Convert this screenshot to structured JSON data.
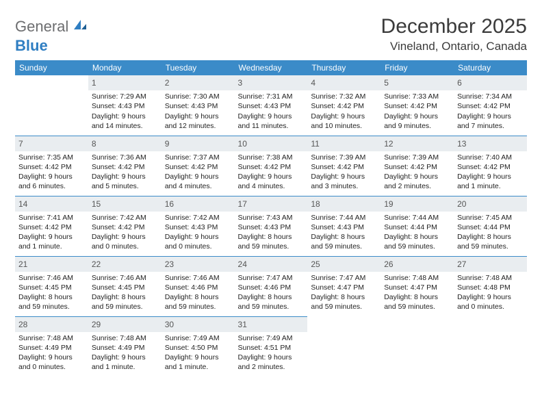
{
  "brand": {
    "word1": "General",
    "word2": "Blue",
    "color_gray": "#6c6d6f",
    "color_blue": "#2f7ec2"
  },
  "title": "December 2025",
  "subtitle": "Vineland, Ontario, Canada",
  "colors": {
    "header_bg": "#3b8bc8",
    "header_fg": "#ffffff",
    "daynum_bg": "#e9edf0",
    "daynum_fg": "#555555",
    "rule": "#3b8bc8",
    "text": "#222222",
    "background": "#ffffff"
  },
  "day_headers": [
    "Sunday",
    "Monday",
    "Tuesday",
    "Wednesday",
    "Thursday",
    "Friday",
    "Saturday"
  ],
  "weeks": [
    [
      null,
      {
        "n": "1",
        "sunrise": "Sunrise: 7:29 AM",
        "sunset": "Sunset: 4:43 PM",
        "daylight": "Daylight: 9 hours and 14 minutes."
      },
      {
        "n": "2",
        "sunrise": "Sunrise: 7:30 AM",
        "sunset": "Sunset: 4:43 PM",
        "daylight": "Daylight: 9 hours and 12 minutes."
      },
      {
        "n": "3",
        "sunrise": "Sunrise: 7:31 AM",
        "sunset": "Sunset: 4:43 PM",
        "daylight": "Daylight: 9 hours and 11 minutes."
      },
      {
        "n": "4",
        "sunrise": "Sunrise: 7:32 AM",
        "sunset": "Sunset: 4:42 PM",
        "daylight": "Daylight: 9 hours and 10 minutes."
      },
      {
        "n": "5",
        "sunrise": "Sunrise: 7:33 AM",
        "sunset": "Sunset: 4:42 PM",
        "daylight": "Daylight: 9 hours and 9 minutes."
      },
      {
        "n": "6",
        "sunrise": "Sunrise: 7:34 AM",
        "sunset": "Sunset: 4:42 PM",
        "daylight": "Daylight: 9 hours and 7 minutes."
      }
    ],
    [
      {
        "n": "7",
        "sunrise": "Sunrise: 7:35 AM",
        "sunset": "Sunset: 4:42 PM",
        "daylight": "Daylight: 9 hours and 6 minutes."
      },
      {
        "n": "8",
        "sunrise": "Sunrise: 7:36 AM",
        "sunset": "Sunset: 4:42 PM",
        "daylight": "Daylight: 9 hours and 5 minutes."
      },
      {
        "n": "9",
        "sunrise": "Sunrise: 7:37 AM",
        "sunset": "Sunset: 4:42 PM",
        "daylight": "Daylight: 9 hours and 4 minutes."
      },
      {
        "n": "10",
        "sunrise": "Sunrise: 7:38 AM",
        "sunset": "Sunset: 4:42 PM",
        "daylight": "Daylight: 9 hours and 4 minutes."
      },
      {
        "n": "11",
        "sunrise": "Sunrise: 7:39 AM",
        "sunset": "Sunset: 4:42 PM",
        "daylight": "Daylight: 9 hours and 3 minutes."
      },
      {
        "n": "12",
        "sunrise": "Sunrise: 7:39 AM",
        "sunset": "Sunset: 4:42 PM",
        "daylight": "Daylight: 9 hours and 2 minutes."
      },
      {
        "n": "13",
        "sunrise": "Sunrise: 7:40 AM",
        "sunset": "Sunset: 4:42 PM",
        "daylight": "Daylight: 9 hours and 1 minute."
      }
    ],
    [
      {
        "n": "14",
        "sunrise": "Sunrise: 7:41 AM",
        "sunset": "Sunset: 4:42 PM",
        "daylight": "Daylight: 9 hours and 1 minute."
      },
      {
        "n": "15",
        "sunrise": "Sunrise: 7:42 AM",
        "sunset": "Sunset: 4:42 PM",
        "daylight": "Daylight: 9 hours and 0 minutes."
      },
      {
        "n": "16",
        "sunrise": "Sunrise: 7:42 AM",
        "sunset": "Sunset: 4:43 PM",
        "daylight": "Daylight: 9 hours and 0 minutes."
      },
      {
        "n": "17",
        "sunrise": "Sunrise: 7:43 AM",
        "sunset": "Sunset: 4:43 PM",
        "daylight": "Daylight: 8 hours and 59 minutes."
      },
      {
        "n": "18",
        "sunrise": "Sunrise: 7:44 AM",
        "sunset": "Sunset: 4:43 PM",
        "daylight": "Daylight: 8 hours and 59 minutes."
      },
      {
        "n": "19",
        "sunrise": "Sunrise: 7:44 AM",
        "sunset": "Sunset: 4:44 PM",
        "daylight": "Daylight: 8 hours and 59 minutes."
      },
      {
        "n": "20",
        "sunrise": "Sunrise: 7:45 AM",
        "sunset": "Sunset: 4:44 PM",
        "daylight": "Daylight: 8 hours and 59 minutes."
      }
    ],
    [
      {
        "n": "21",
        "sunrise": "Sunrise: 7:46 AM",
        "sunset": "Sunset: 4:45 PM",
        "daylight": "Daylight: 8 hours and 59 minutes."
      },
      {
        "n": "22",
        "sunrise": "Sunrise: 7:46 AM",
        "sunset": "Sunset: 4:45 PM",
        "daylight": "Daylight: 8 hours and 59 minutes."
      },
      {
        "n": "23",
        "sunrise": "Sunrise: 7:46 AM",
        "sunset": "Sunset: 4:46 PM",
        "daylight": "Daylight: 8 hours and 59 minutes."
      },
      {
        "n": "24",
        "sunrise": "Sunrise: 7:47 AM",
        "sunset": "Sunset: 4:46 PM",
        "daylight": "Daylight: 8 hours and 59 minutes."
      },
      {
        "n": "25",
        "sunrise": "Sunrise: 7:47 AM",
        "sunset": "Sunset: 4:47 PM",
        "daylight": "Daylight: 8 hours and 59 minutes."
      },
      {
        "n": "26",
        "sunrise": "Sunrise: 7:48 AM",
        "sunset": "Sunset: 4:47 PM",
        "daylight": "Daylight: 8 hours and 59 minutes."
      },
      {
        "n": "27",
        "sunrise": "Sunrise: 7:48 AM",
        "sunset": "Sunset: 4:48 PM",
        "daylight": "Daylight: 9 hours and 0 minutes."
      }
    ],
    [
      {
        "n": "28",
        "sunrise": "Sunrise: 7:48 AM",
        "sunset": "Sunset: 4:49 PM",
        "daylight": "Daylight: 9 hours and 0 minutes."
      },
      {
        "n": "29",
        "sunrise": "Sunrise: 7:48 AM",
        "sunset": "Sunset: 4:49 PM",
        "daylight": "Daylight: 9 hours and 1 minute."
      },
      {
        "n": "30",
        "sunrise": "Sunrise: 7:49 AM",
        "sunset": "Sunset: 4:50 PM",
        "daylight": "Daylight: 9 hours and 1 minute."
      },
      {
        "n": "31",
        "sunrise": "Sunrise: 7:49 AM",
        "sunset": "Sunset: 4:51 PM",
        "daylight": "Daylight: 9 hours and 2 minutes."
      },
      null,
      null,
      null
    ]
  ]
}
